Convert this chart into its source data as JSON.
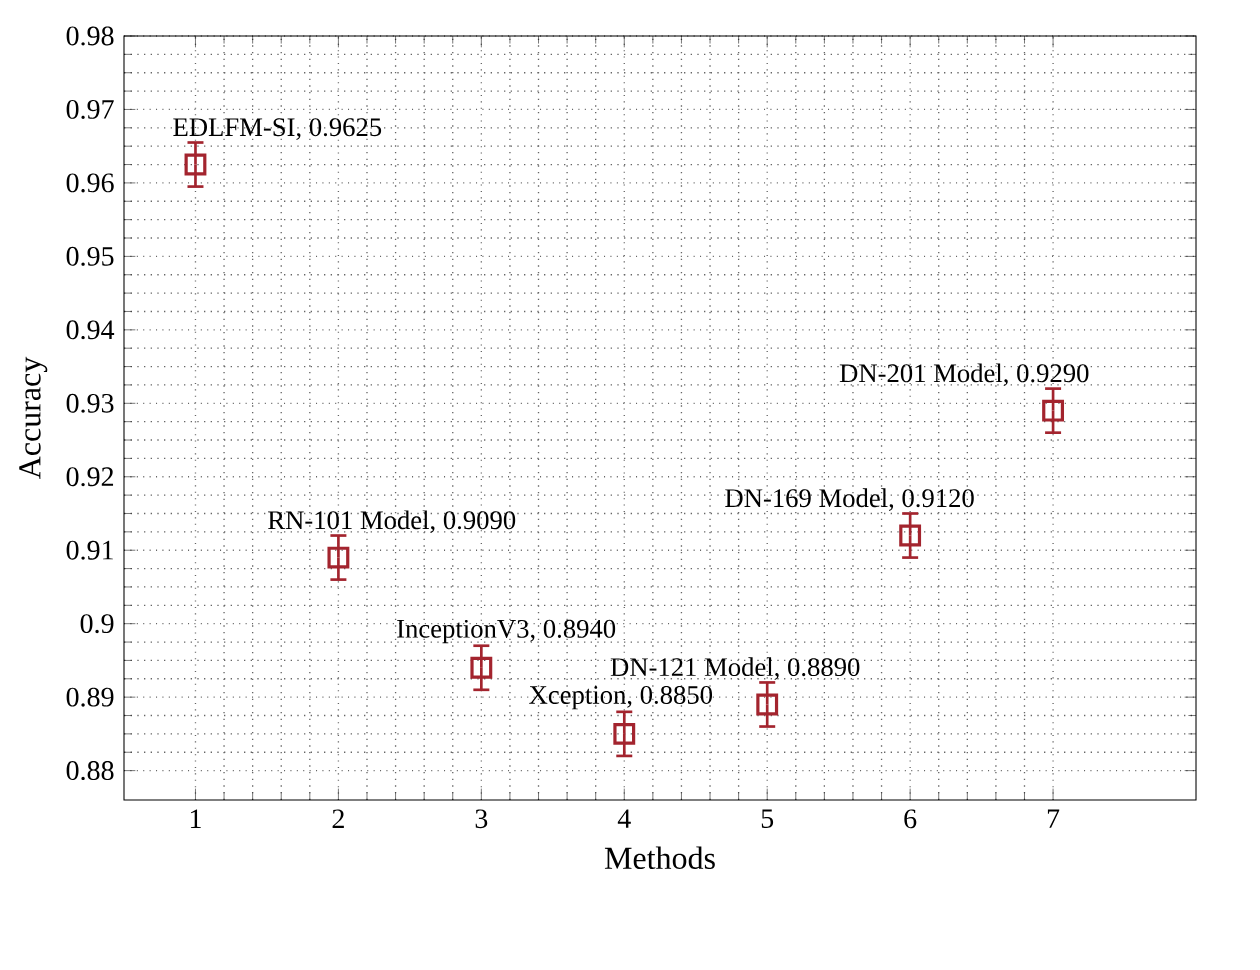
{
  "chart_data": {
    "type": "scatter",
    "xlabel": "Methods",
    "ylabel": "Accuracy",
    "x": [
      1,
      2,
      3,
      4,
      5,
      6,
      7
    ],
    "series": [
      {
        "color": "#a3242e",
        "values": [
          0.9625,
          0.909,
          0.894,
          0.885,
          0.889,
          0.912,
          0.929
        ],
        "errors": [
          0.003,
          0.003,
          0.003,
          0.003,
          0.003,
          0.003,
          0.003
        ]
      }
    ],
    "marker": "square",
    "xlim": [
      0.5,
      8
    ],
    "xticks": [
      1,
      2,
      3,
      4,
      5,
      6,
      7
    ],
    "ylim": [
      0.876,
      0.98
    ],
    "yticks": [
      0.88,
      0.89,
      0.9,
      0.91,
      0.92,
      0.93,
      0.94,
      0.95,
      0.96,
      0.97,
      0.98
    ],
    "grid": true,
    "annotations": [
      {
        "text": "EDLFM-SI, 0.9625",
        "x": 1,
        "y": 0.9625
      },
      {
        "text": "RN-101 Model, 0.9090",
        "x": 2,
        "y": 0.909
      },
      {
        "text": "InceptionV3, 0.8940",
        "x": 3,
        "y": 0.894
      },
      {
        "text": "Xception, 0.8850",
        "x": 4,
        "y": 0.885
      },
      {
        "text": "DN-121 Model, 0.8890",
        "x": 5,
        "y": 0.889
      },
      {
        "text": "DN-169 Model, 0.9120",
        "x": 6,
        "y": 0.912
      },
      {
        "text": "DN-201 Model, 0.9290",
        "x": 7,
        "y": 0.929
      }
    ]
  }
}
